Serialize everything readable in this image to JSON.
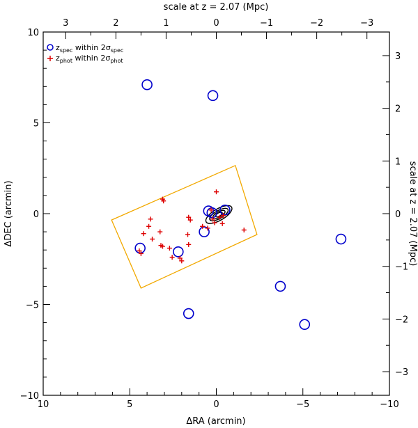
{
  "chart_data": {
    "type": "scatter",
    "xlabel": "ΔRA (arcmin)",
    "ylabel": "ΔDEC (arcmin)",
    "top_label": "scale at z = 2.07 (Mpc)",
    "right_label": "scale at z = 2.07 (Mpc)",
    "xlim": [
      10,
      -10
    ],
    "ylim": [
      -10,
      10
    ],
    "x_ticks": [
      10,
      5,
      0,
      -5,
      -10
    ],
    "x_tick_labels": [
      "10",
      "5",
      "0",
      "−5",
      "−10"
    ],
    "y_ticks": [
      -10,
      -5,
      0,
      5,
      10
    ],
    "y_tick_labels": [
      "−10",
      "−5",
      "0",
      "5",
      "10"
    ],
    "mpc_ticks": [
      3,
      2,
      1,
      0,
      -1,
      -2,
      -3
    ],
    "mpc_tick_labels": [
      "3",
      "2",
      "1",
      "0",
      "−1",
      "−2",
      "−3"
    ],
    "arcmin_per_mpc": 2.9,
    "legend": {
      "position": "top-left",
      "entries": [
        {
          "marker": "circle",
          "color": "#0000cc",
          "label_main": "z",
          "label_sub": "spec",
          "label_mid": " within 2σ",
          "label_sub2": "spec"
        },
        {
          "marker": "plus",
          "color": "#dd0000",
          "label_main": "z",
          "label_sub": "phot",
          "label_mid": " within 2σ",
          "label_sub2": "phot"
        }
      ]
    },
    "series": [
      {
        "name": "zspec within 2σspec",
        "marker": "circle",
        "color": "#0000cc",
        "points": [
          [
            4.0,
            7.1
          ],
          [
            0.2,
            6.5
          ],
          [
            4.4,
            -1.9
          ],
          [
            2.2,
            -2.1
          ],
          [
            0.7,
            -1.0
          ],
          [
            0.45,
            0.15
          ],
          [
            0.25,
            0.05
          ],
          [
            -0.5,
            0.2
          ],
          [
            -7.2,
            -1.4
          ],
          [
            -3.7,
            -4.0
          ],
          [
            1.6,
            -5.5
          ],
          [
            -5.1,
            -6.1
          ]
        ]
      },
      {
        "name": "zphot within 2σphot",
        "marker": "plus",
        "color": "#dd0000",
        "points": [
          [
            3.1,
            0.8
          ],
          [
            3.05,
            0.7
          ],
          [
            3.8,
            -0.3
          ],
          [
            3.9,
            -0.7
          ],
          [
            3.25,
            -1.0
          ],
          [
            4.2,
            -1.1
          ],
          [
            3.7,
            -1.4
          ],
          [
            3.2,
            -1.75
          ],
          [
            3.1,
            -1.8
          ],
          [
            2.7,
            -1.9
          ],
          [
            4.45,
            -2.05
          ],
          [
            4.35,
            -2.2
          ],
          [
            2.55,
            -2.4
          ],
          [
            2.1,
            -2.45
          ],
          [
            2.0,
            -2.6
          ],
          [
            1.6,
            -0.2
          ],
          [
            1.5,
            -0.35
          ],
          [
            1.65,
            -1.15
          ],
          [
            1.6,
            -1.7
          ],
          [
            0.0,
            1.2
          ],
          [
            0.3,
            0.2
          ],
          [
            0.2,
            -0.3
          ],
          [
            0.1,
            -0.5
          ],
          [
            -0.2,
            -0.2
          ],
          [
            -0.4,
            -0.1
          ],
          [
            -0.35,
            -0.55
          ],
          [
            0.5,
            -0.8
          ],
          [
            0.8,
            -0.7
          ],
          [
            -1.6,
            -0.9
          ]
        ]
      }
    ],
    "contours": {
      "color": "#000000",
      "center": [
        -0.15,
        -0.05
      ],
      "angle_deg": -30,
      "semi_axes": [
        [
          0.85,
          0.32
        ],
        [
          0.6,
          0.22
        ],
        [
          0.4,
          0.15
        ],
        [
          0.22,
          0.09
        ]
      ]
    },
    "footprint": {
      "color": "#f2a900",
      "corners": [
        [
          -2.35,
          -1.15
        ],
        [
          -1.1,
          2.65
        ],
        [
          6.05,
          -0.35
        ],
        [
          4.35,
          -4.1
        ]
      ]
    }
  }
}
